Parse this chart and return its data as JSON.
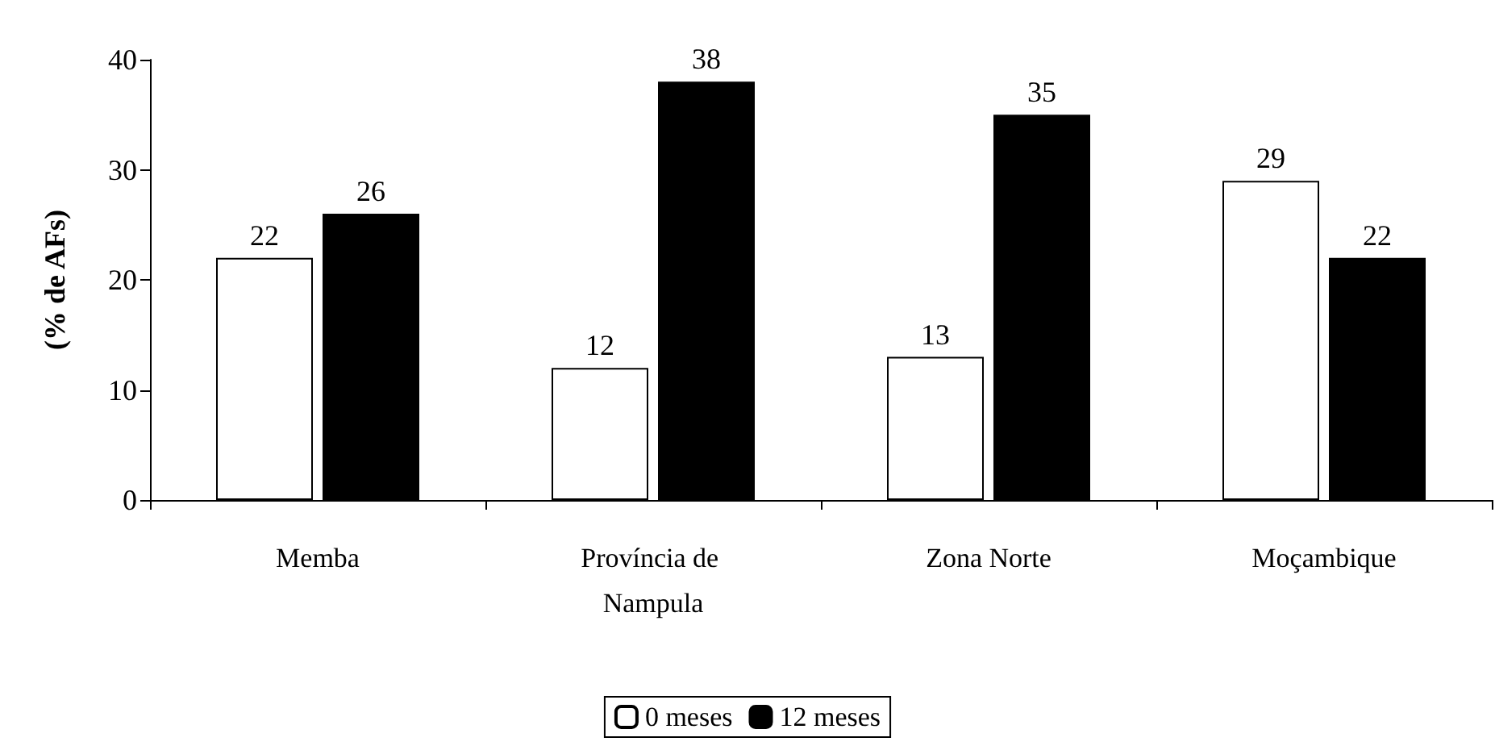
{
  "chart_data": {
    "type": "bar",
    "ylabel": "(% de AFs)",
    "categories": [
      "Memba",
      "Província de Nampula",
      "Zona Norte",
      "Moçambique"
    ],
    "series": [
      {
        "name": "0 meses",
        "color": "#ffffff",
        "values": [
          22,
          12,
          13,
          29
        ]
      },
      {
        "name": "12 meses",
        "color": "#000000",
        "values": [
          26,
          38,
          35,
          22
        ]
      }
    ],
    "ylim": [
      0,
      40
    ],
    "yticks": [
      0,
      10,
      20,
      30,
      40
    ],
    "data_labels": true,
    "grid": false,
    "legend": "bottom"
  }
}
